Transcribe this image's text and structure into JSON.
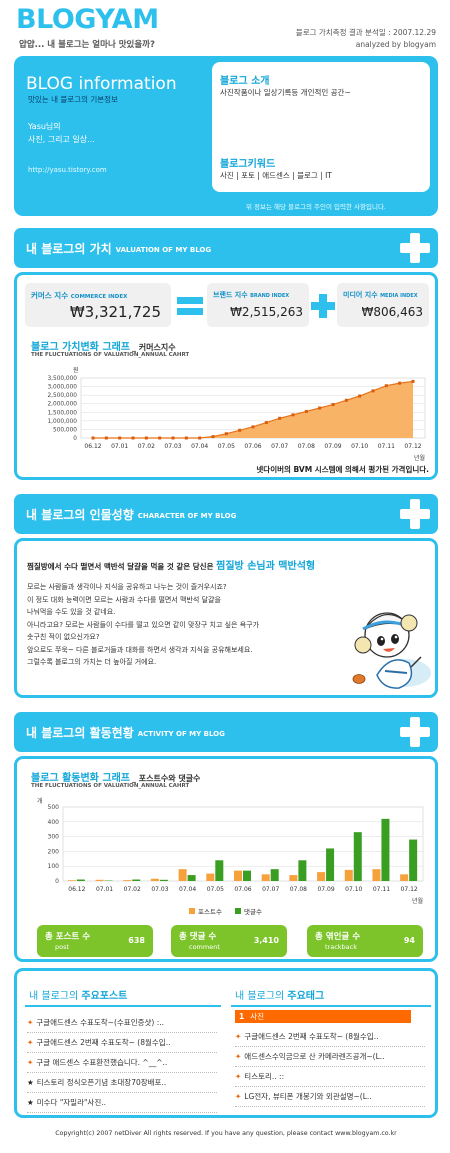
{
  "header": {
    "logo": "BLOGYAM",
    "tagline": "얍얍... 내 블로그는 얼마나 맛있을까?",
    "report": "블로그 가치측정 결과 분석일 : 2007.12.29",
    "analyzed": "analyzed by blogyam"
  },
  "info": {
    "title": "BLOG information",
    "subtitle": "맛있는 내 블로그의 기본정보",
    "owner": "Yasu님의",
    "blog_name": "사진, 그리고 일상...",
    "url": "http://yasu.tistory.com",
    "intro_label": "블로그 소개",
    "intro_text": "사진작품이나 일상기록등 개인적인 공간~",
    "keyword_label": "블로그키워드",
    "keywords": "사진 | 포토 | 애드센스 | 블로그 | IT",
    "note": "위 정보는 해당 블로그의 주인이 입력한 사항입니다."
  },
  "value_section": {
    "bar_title": "내 블로그의",
    "bar_title_strong": "가치",
    "bar_en": "VALUATION OF MY BLOG",
    "commerce_label": "커머스 지수",
    "commerce_en": "COMMERCE INDEX",
    "commerce_value": "₩3,321,725",
    "brand_label": "브랜드 지수",
    "brand_en": "BRAND INDEX",
    "brand_value": "₩2,515,263",
    "media_label": "미디어 지수",
    "media_en": "MEDIA INDEX",
    "media_value": "₩806,463",
    "chart_title": "블로그 가치변화 그래프",
    "chart_title_sub": "_ 커머스지수",
    "chart_en": "THE FLUCTUATIONS OF VALUATION_ANNUAL CAHRT",
    "unit": "원",
    "axis_unit": "년월",
    "footnote": "넷다이버의 BVM 시스템에 의해서 평가된 가격입니다."
  },
  "character_section": {
    "bar_title": "내 블로그의",
    "bar_title_strong": "인물성향",
    "bar_en": "CHARACTER OF MY BLOG",
    "headline_pre": "찜질방에서 수다 떨면서 맥반석 달걀을 먹을 것 같은 당신은",
    "headline_strong": "찜질방 손님과 맥반석형",
    "lines": [
      "모르는 사람들과 생각이나 지식을 공유하고 나누는 것이 즐거우시죠?",
      "이 정도 대화 능력이면 모르는 사람과 수다를 떨면서 맥반석 달걀을",
      "나눠먹을 수도 있을 것 같네요.",
      "아니라고요? 모르는 사람들이 수다를 떨고 있으면 같이 맞장구 치고 싶은 욕구가",
      "솟구친 적이 없으신가요?",
      "앞으로도 쭈욱~ 다른 블로거들과 대화를 하면서 생각과 지식을 공유해보세요.",
      "그럴수록 블로그의 가치는 더 높아질 거에요."
    ]
  },
  "activity_section": {
    "bar_title": "내 블로그의",
    "bar_title_strong": "활동현황",
    "bar_en": "ACTIVITY OF MY BLOG",
    "chart_title": "블로그 활동변화 그래프",
    "chart_title_sub": "_ 포스트수와 댓글수",
    "chart_en": "THE FLUCTUATIONS OF VALUATION_ANNUAL CAHRT",
    "unit": "개",
    "axis_unit": "년월",
    "stats": [
      {
        "label": "총 포스트 수",
        "en": "post",
        "value": "638"
      },
      {
        "label": "총 댓글 수",
        "en": "comment",
        "value": "3,410"
      },
      {
        "label": "총 엮인글 수",
        "en": "trackback",
        "value": "94"
      }
    ]
  },
  "main_posts": {
    "title_pre": "내 블로그의",
    "title_strong": "주요포스트",
    "items": [
      "구글애드센스 수표도착~(수표인증샷) :..",
      "구글애드센스 2번째 수표도착~ (8월수입..",
      "구글 애드센스 수표환전했습니다. ^__^..",
      "티스토리 정식오픈기념 초대장70장배포..",
      "미수다 \"자밀라\"사진.."
    ],
    "markers": [
      "✦",
      "✦",
      "✦",
      "★",
      "★"
    ]
  },
  "main_tags": {
    "title_pre": "내 블로그의",
    "title_strong": "주요태그",
    "top_rank": "1",
    "top_tag": "사진",
    "items": [
      "구글애드센스 2번째 수표도착~ (8월수입..",
      "애드센스수익금으로 산 카메라렌즈공개~(L..",
      "티스토리.. ::",
      "LG전자, 뷰티폰 개봉기와 외관설명~(L.."
    ]
  },
  "footer": {
    "text": "Copyright(c) 2007 netDiver All rights reserved. If you have any question, please contact www.blogyam.co.kr"
  },
  "colors": {
    "accent": "#2ec0ec",
    "orange": "#f7a13c",
    "green": "#7cc42a",
    "highlight": "#ff6a00"
  },
  "chart_data": [
    {
      "type": "area",
      "title": "블로그 가치변화 그래프_ 커머스지수",
      "xlabel": "년월",
      "ylabel": "원",
      "categories": [
        "06.12",
        "07.01",
        "07.02",
        "07.03",
        "07.04",
        "07.05",
        "07.06",
        "07.07",
        "07.08",
        "07.09",
        "07.10",
        "07.11",
        "07.12"
      ],
      "x": [
        0,
        0.5,
        1,
        1.5,
        2,
        2.5,
        3,
        3.5,
        4,
        4.5,
        5,
        5.5,
        6,
        6.5,
        7,
        7.5,
        8,
        8.5,
        9,
        9.5,
        10,
        10.5,
        11,
        11.5,
        12
      ],
      "values": [
        0,
        0,
        0,
        0,
        0,
        0,
        0,
        0,
        0,
        80000,
        250000,
        450000,
        650000,
        900000,
        1150000,
        1350000,
        1550000,
        1750000,
        1950000,
        2200000,
        2450000,
        2750000,
        3050000,
        3200000,
        3300000
      ],
      "yticks": [
        "3,500,000",
        "3,000,000",
        "2,500,000",
        "2,000,000",
        "1,500,000",
        "1,000,000",
        "500,000",
        "0"
      ],
      "ylim": [
        0,
        3500000
      ],
      "grid": true
    },
    {
      "type": "bar",
      "title": "블로그 활동변화 그래프_ 포스트수와 댓글수",
      "xlabel": "년월",
      "ylabel": "개",
      "categories": [
        "06.12",
        "07.01",
        "07.02",
        "07.03",
        "07.04",
        "07.05",
        "07.06",
        "07.07",
        "07.08",
        "07.09",
        "07.10",
        "07.11",
        "07.12"
      ],
      "series": [
        {
          "name": "포스트수",
          "color": "#f7a13c",
          "values": [
            5,
            8,
            6,
            15,
            80,
            50,
            70,
            45,
            40,
            60,
            75,
            80,
            45
          ]
        },
        {
          "name": "댓글수",
          "color": "#3a9e22",
          "values": [
            10,
            3,
            10,
            8,
            40,
            140,
            70,
            80,
            140,
            220,
            330,
            420,
            280
          ]
        }
      ],
      "yticks": [
        "500",
        "400",
        "300",
        "200",
        "100",
        "0"
      ],
      "ylim": [
        0,
        500
      ],
      "grid": true,
      "legend": "bottom-center"
    }
  ]
}
